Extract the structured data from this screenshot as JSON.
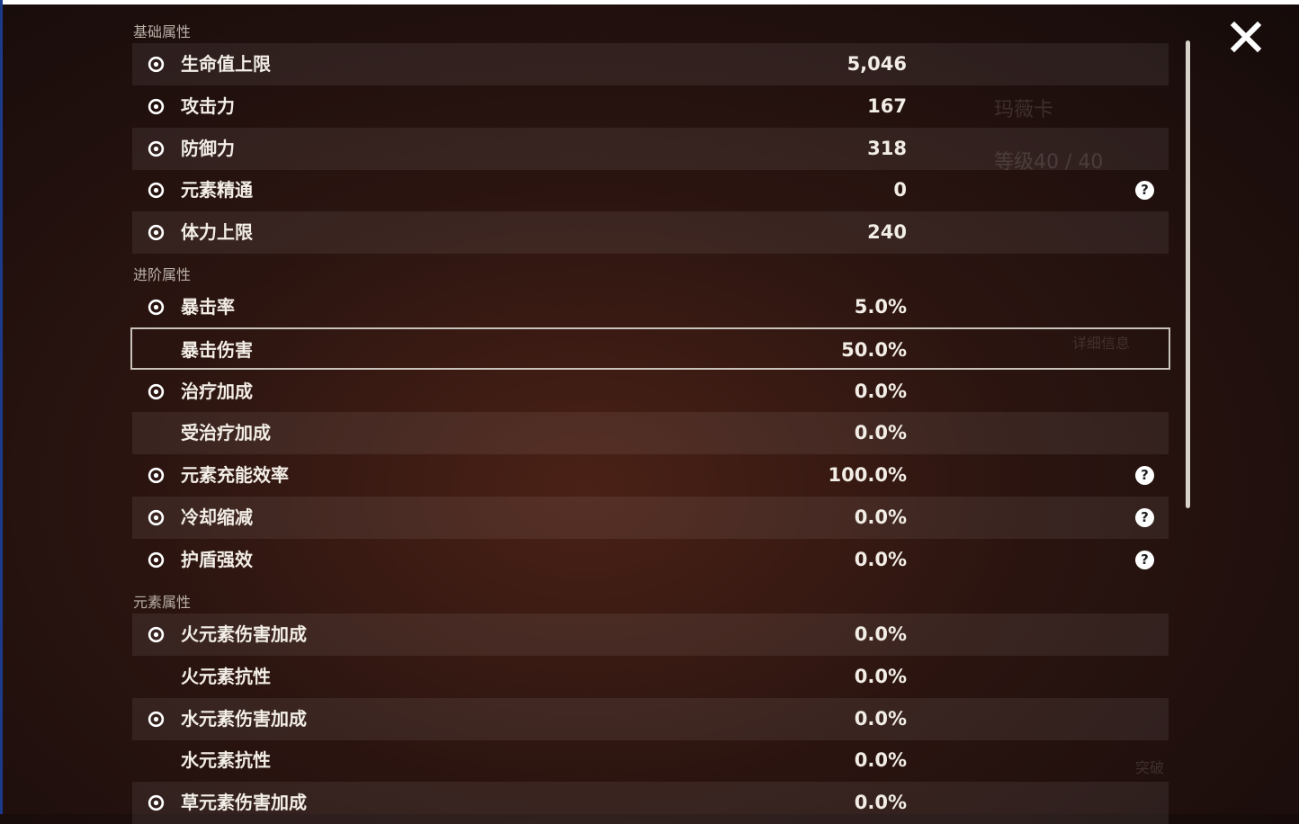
{
  "sections": [
    {
      "title": "基础属性",
      "rows": [
        {
          "label": "生命值上限",
          "value": "5,046"
        },
        {
          "label": "攻击力",
          "value": "167"
        },
        {
          "label": "防御力",
          "value": "318"
        },
        {
          "label": "元素精通",
          "value": "0",
          "help": true
        },
        {
          "label": "体力上限",
          "value": "240"
        }
      ]
    },
    {
      "title": "进阶属性",
      "rows": [
        {
          "label": "暴击率",
          "value": "5.0%"
        },
        {
          "label": "暴击伤害",
          "value": "50.0%",
          "selected": true
        },
        {
          "label": "治疗加成",
          "value": "0.0%"
        },
        {
          "label": "受治疗加成",
          "value": "0.0%"
        },
        {
          "label": "元素充能效率",
          "value": "100.0%",
          "help": true
        },
        {
          "label": "冷却缩减",
          "value": "0.0%",
          "help": true
        },
        {
          "label": "护盾强效",
          "value": "0.0%",
          "help": true
        }
      ]
    },
    {
      "title": "元素属性",
      "rows": [
        {
          "label": "火元素伤害加成",
          "value": "0.0%"
        },
        {
          "label": "火元素抗性",
          "value": "0.0%"
        },
        {
          "label": "水元素伤害加成",
          "value": "0.0%"
        },
        {
          "label": "水元素抗性",
          "value": "0.0%"
        },
        {
          "label": "草元素伤害加成",
          "value": "0.0%"
        }
      ]
    }
  ],
  "background": {
    "name": "玛薇卡",
    "level": "等级40 / 40",
    "details": "详细信息",
    "ascend": "突破"
  }
}
